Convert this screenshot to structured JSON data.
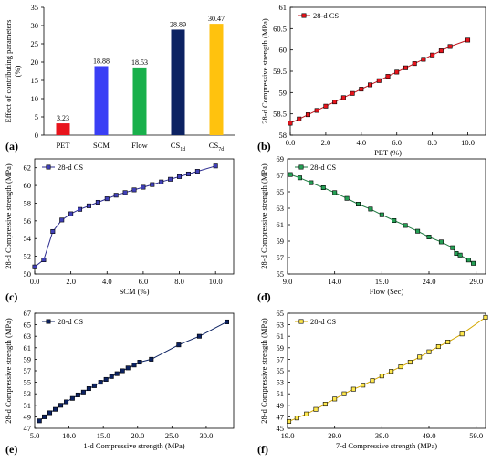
{
  "chart_data": [
    {
      "type": "bar",
      "panel_label": "(a)",
      "categories": [
        "PET",
        "SCM",
        "Flow",
        "CS1d",
        "CS7d"
      ],
      "category_labels": [
        {
          "main": "PET",
          "sub": ""
        },
        {
          "main": "SCM",
          "sub": ""
        },
        {
          "main": "Flow",
          "sub": ""
        },
        {
          "main": "CS",
          "sub": "1d"
        },
        {
          "main": "CS",
          "sub": "7d"
        }
      ],
      "values": [
        3.23,
        18.88,
        18.53,
        28.89,
        30.47
      ],
      "data_labels": [
        "3.23",
        "18.88",
        "18.53",
        "28.89",
        "30.47"
      ],
      "bar_colors": [
        "#e8141c",
        "#3a3ff5",
        "#19b04b",
        "#0c2262",
        "#ffc20e"
      ],
      "ylabel_lines": [
        "Effect of contributing parameters",
        "(%)"
      ],
      "ylim": [
        0,
        35
      ],
      "yticks": [
        "0",
        "5",
        "10",
        "15",
        "20",
        "25",
        "30",
        "35"
      ],
      "grid": false
    },
    {
      "type": "line",
      "panel_label": "(b)",
      "series": [
        {
          "name": "28-d CS",
          "color": "#c0151d",
          "fill": "#e8141c",
          "x": [
            0,
            0.5,
            1,
            1.5,
            2,
            2.5,
            3,
            3.5,
            4,
            4.5,
            5,
            5.5,
            6,
            6.5,
            7,
            7.5,
            8,
            8.5,
            9,
            10
          ],
          "y": [
            58.28,
            58.38,
            58.48,
            58.58,
            58.68,
            58.78,
            58.88,
            58.98,
            59.08,
            59.18,
            59.28,
            59.38,
            59.48,
            59.58,
            59.68,
            59.78,
            59.88,
            59.98,
            60.08,
            60.23
          ]
        }
      ],
      "xlabel": "PET (%)",
      "ylabel": "28-d Compressive strength (MPa)",
      "xlim": [
        0,
        11
      ],
      "ylim": [
        58,
        61
      ],
      "xticks": [
        0,
        2,
        4,
        6,
        8,
        10
      ],
      "xtick_labels": [
        "0.0",
        "2.0",
        "4.0",
        "6.0",
        "8.0",
        "10.0"
      ],
      "yticks": [
        58,
        58.5,
        59,
        59.5,
        60,
        60.5,
        61
      ],
      "ytick_labels": [
        "58",
        "58.5",
        "59",
        "59.5",
        "60",
        "60.5",
        "61"
      ],
      "legend_position": "top-left"
    },
    {
      "type": "line",
      "panel_label": "(c)",
      "series": [
        {
          "name": "28-d CS",
          "color": "#2b2b8f",
          "fill": "#4040b8",
          "x": [
            0,
            0.5,
            1,
            1.5,
            2,
            2.5,
            3,
            3.5,
            4,
            4.5,
            5,
            5.5,
            6,
            6.5,
            7,
            7.5,
            8,
            8.5,
            9,
            10
          ],
          "y": [
            50.8,
            51.6,
            54.8,
            56.1,
            56.8,
            57.3,
            57.7,
            58.1,
            58.5,
            58.9,
            59.2,
            59.5,
            59.8,
            60.1,
            60.4,
            60.7,
            61.0,
            61.3,
            61.6,
            62.2
          ]
        }
      ],
      "xlabel": "SCM (%)",
      "ylabel": "28-d Compressive strength (MPa)",
      "xlim": [
        0,
        11
      ],
      "ylim": [
        50,
        63
      ],
      "xticks": [
        0,
        2,
        4,
        6,
        8,
        10
      ],
      "xtick_labels": [
        "0.0",
        "2.0",
        "4.0",
        "6.0",
        "8.0",
        "10.0"
      ],
      "yticks": [
        50,
        52,
        54,
        56,
        58,
        60,
        62
      ],
      "ytick_labels": [
        "50",
        "52",
        "54",
        "56",
        "58",
        "60",
        "62"
      ],
      "legend_position": "top-left"
    },
    {
      "type": "line",
      "panel_label": "(d)",
      "series": [
        {
          "name": "28-d CS",
          "color": "#1e7a40",
          "fill": "#25a055",
          "x": [
            9.3,
            10.3,
            11.5,
            12.8,
            14.0,
            15.3,
            16.5,
            17.8,
            19.0,
            20.3,
            21.5,
            22.8,
            24.0,
            25.3,
            26.5,
            26.9,
            27.3,
            28.2,
            28.7
          ],
          "y": [
            67.1,
            66.7,
            66.1,
            65.5,
            64.9,
            64.2,
            63.5,
            62.9,
            62.2,
            61.5,
            60.9,
            60.2,
            59.5,
            58.9,
            58.2,
            57.5,
            57.3,
            56.7,
            56.3
          ]
        }
      ],
      "xlabel": "Flow (Sec)",
      "ylabel": "28-d Compressive strength (MPa)",
      "xlim": [
        9,
        30
      ],
      "ylim": [
        55,
        69
      ],
      "xticks": [
        9,
        14,
        19,
        24,
        29
      ],
      "xtick_labels": [
        "9.0",
        "14.0",
        "19.0",
        "24.0",
        "29.0"
      ],
      "yticks": [
        55,
        57,
        59,
        61,
        63,
        65,
        67,
        69
      ],
      "ytick_labels": [
        "55",
        "57",
        "59",
        "61",
        "63",
        "65",
        "67",
        "69"
      ],
      "legend_position": "top-left"
    },
    {
      "type": "line",
      "panel_label": "(e)",
      "series": [
        {
          "name": "28-d CS",
          "color": "#0c2262",
          "fill": "#0c2262",
          "x": [
            5.7,
            6.4,
            7.2,
            8.0,
            8.8,
            9.6,
            10.5,
            11.3,
            12.1,
            12.9,
            13.7,
            14.6,
            15.4,
            16.2,
            17.0,
            17.8,
            18.6,
            19.5,
            20.3,
            22.0,
            26.0,
            29.0,
            33.0
          ],
          "y": [
            48.3,
            49.0,
            49.7,
            50.3,
            51.0,
            51.6,
            52.2,
            52.8,
            53.3,
            53.9,
            54.4,
            55.0,
            55.5,
            56.0,
            56.5,
            57.0,
            57.5,
            58.0,
            58.5,
            59.0,
            61.5,
            63.0,
            65.5
          ]
        }
      ],
      "xlabel": "1-d Compressive strength (MPa)",
      "ylabel": "28-d Compressive strength (MPa)",
      "xlim": [
        5,
        34
      ],
      "ylim": [
        47,
        67
      ],
      "xticks": [
        5,
        10,
        15,
        20,
        25,
        30
      ],
      "xtick_labels": [
        "5.0",
        "10.0",
        "15.0",
        "20.0",
        "25.0",
        "30.0"
      ],
      "yticks": [
        47,
        49,
        51,
        53,
        55,
        57,
        59,
        61,
        63,
        65,
        67
      ],
      "ytick_labels": [
        "47",
        "49",
        "51",
        "53",
        "55",
        "57",
        "59",
        "61",
        "63",
        "65",
        "67"
      ],
      "legend_position": "top-left"
    },
    {
      "type": "line",
      "panel_label": "(f)",
      "series": [
        {
          "name": "28-d CS",
          "color": "#d4a800",
          "fill": "#ffe84d",
          "x": [
            19.3,
            21.0,
            23.0,
            25.0,
            27.0,
            29.0,
            31.0,
            33.0,
            35.0,
            37.0,
            39.0,
            41.0,
            43.0,
            45.0,
            47.0,
            49.0,
            51.0,
            53.0,
            56.0,
            61.0
          ],
          "y": [
            46.2,
            46.8,
            47.5,
            48.3,
            49.2,
            50.1,
            51.0,
            51.8,
            52.5,
            53.3,
            54.1,
            54.9,
            55.7,
            56.5,
            57.4,
            58.3,
            59.2,
            60.0,
            61.4,
            64.3
          ]
        }
      ],
      "xlabel": "7-d Compressive strength (MPa)",
      "ylabel": "28-d Compressive strength (MPa)",
      "xlim": [
        19,
        61
      ],
      "ylim": [
        45,
        65
      ],
      "xticks": [
        19,
        29,
        39,
        49,
        59
      ],
      "xtick_labels": [
        "19.0",
        "29.0",
        "39.0",
        "49.0",
        "59.0"
      ],
      "yticks": [
        45,
        47,
        49,
        51,
        53,
        55,
        57,
        59,
        61,
        63,
        65
      ],
      "ytick_labels": [
        "45",
        "47",
        "49",
        "51",
        "53",
        "55",
        "57",
        "59",
        "61",
        "63",
        "65"
      ],
      "legend_position": "top-left"
    }
  ]
}
